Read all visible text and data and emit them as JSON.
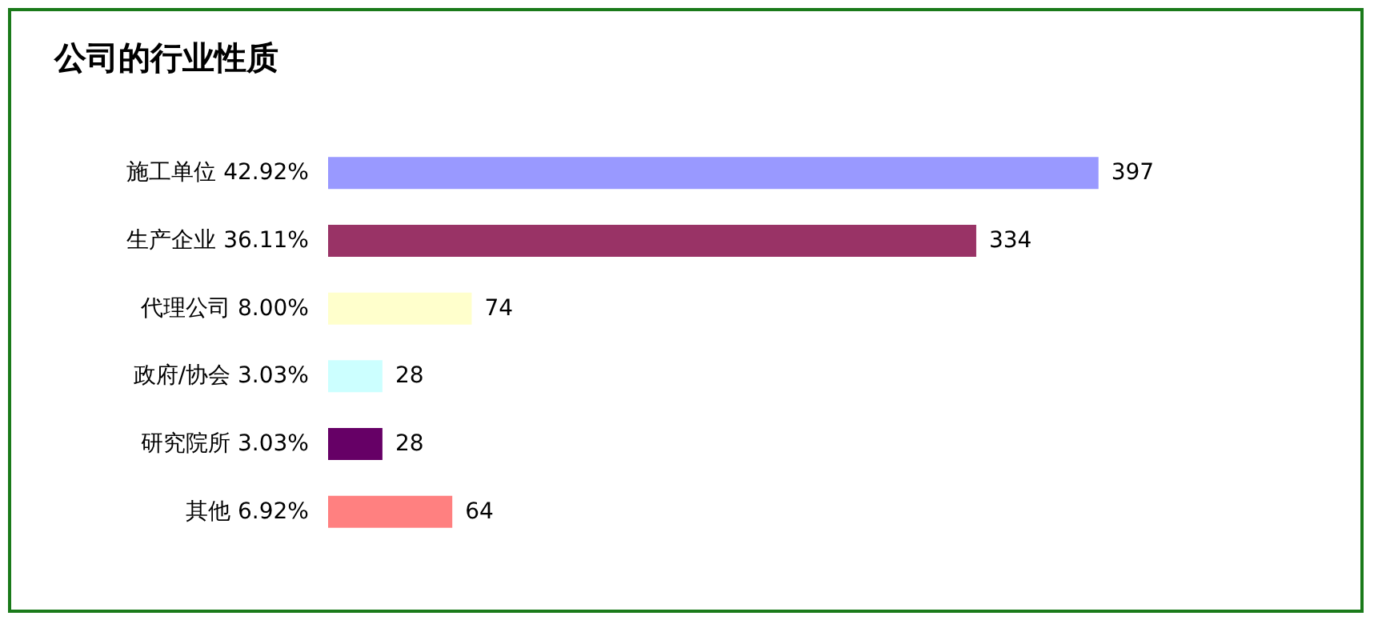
{
  "chart_data": {
    "type": "bar",
    "orientation": "horizontal",
    "title": "公司的行业性质",
    "categories": [
      "施工单位 42.92%",
      "生产企业 36.11%",
      "代理公司 8.00%",
      "政府/协会 3.03%",
      "研究院所 3.03%",
      "其他 6.92%"
    ],
    "values": [
      397,
      334,
      74,
      28,
      28,
      64
    ],
    "colors": [
      "#9999ff",
      "#993366",
      "#ffffcc",
      "#ccffff",
      "#660066",
      "#ff8080"
    ],
    "data_labels": true,
    "grid": false
  }
}
